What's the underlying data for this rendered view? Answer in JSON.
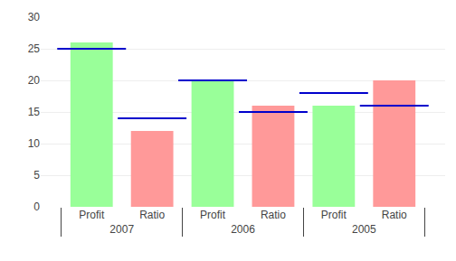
{
  "chart_data": {
    "type": "bar",
    "categories": [
      "2007",
      "2006",
      "2005"
    ],
    "series": [
      {
        "name": "Profit",
        "color": "#99FF99",
        "values": [
          26,
          20,
          16
        ]
      },
      {
        "name": "Ratio",
        "color": "#FF9999",
        "values": [
          12,
          16,
          20
        ]
      },
      {
        "name": "Profit",
        "type": "marker",
        "marker": "line",
        "color": "#0000CC",
        "values": [
          25,
          20,
          18
        ]
      },
      {
        "name": "Ratio",
        "type": "marker",
        "marker": "line",
        "color": "#0000CC",
        "values": [
          14,
          15,
          16
        ]
      }
    ],
    "ylim": [
      0,
      30
    ],
    "yticks": [
      0,
      5,
      10,
      15,
      20,
      25,
      30
    ],
    "grid": true
  }
}
